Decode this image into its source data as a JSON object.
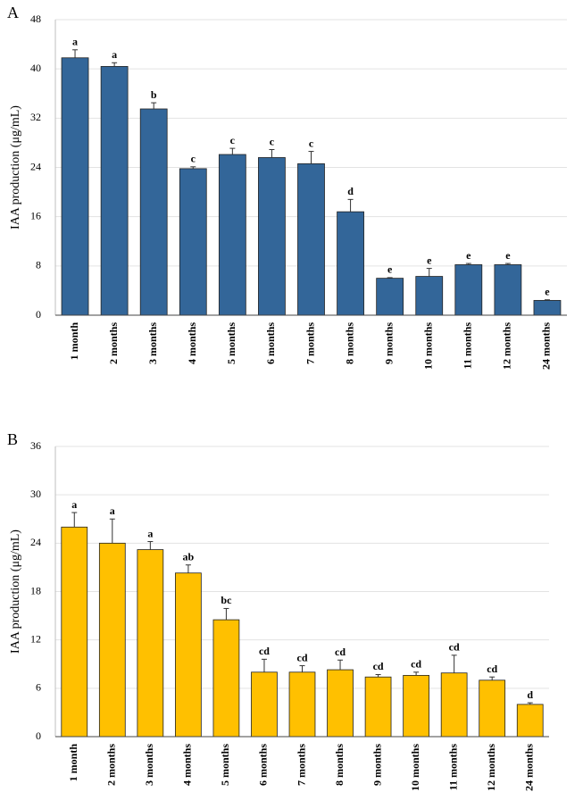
{
  "chart_data": [
    {
      "type": "bar",
      "panel": "A",
      "y_label": "IAA production (μg/mL)",
      "color": "#336699",
      "categories": [
        "1 month",
        "2 months",
        "3 months",
        "4 months",
        "5 months",
        "6 months",
        "7 months",
        "8 months",
        "9 months",
        "10 months",
        "11 months",
        "12 months",
        "24 months"
      ],
      "values": [
        41.8,
        40.4,
        33.5,
        23.8,
        26.1,
        25.6,
        24.6,
        16.8,
        6.0,
        6.3,
        8.2,
        8.2,
        2.4
      ],
      "errors": [
        1.3,
        0.6,
        1.0,
        0.3,
        1.0,
        1.3,
        2.0,
        2.0,
        0.1,
        1.3,
        0.2,
        0.2,
        0.1
      ],
      "letters": [
        "a",
        "a",
        "b",
        "c",
        "c",
        "c",
        "c",
        "d",
        "e",
        "e",
        "e",
        "e",
        "e"
      ],
      "ylim": [
        0,
        48
      ],
      "yticks": [
        0,
        8,
        16,
        24,
        32,
        40,
        48
      ],
      "grid": true
    },
    {
      "type": "bar",
      "panel": "B",
      "y_label": "IAA production (μg/mL)",
      "color": "#ffc000",
      "categories": [
        "1 month",
        "2 months",
        "3 months",
        "4 months",
        "5 months",
        "6 months",
        "7 months",
        "8 months",
        "9 months",
        "10 months",
        "11 months",
        "12 months",
        "24 months"
      ],
      "values": [
        26.0,
        24.0,
        23.2,
        20.3,
        14.5,
        8.0,
        8.0,
        8.3,
        7.4,
        7.6,
        7.9,
        7.0,
        4.0
      ],
      "errors": [
        1.8,
        3.0,
        1.0,
        1.0,
        1.4,
        1.6,
        0.8,
        1.2,
        0.3,
        0.4,
        2.2,
        0.4,
        0.2
      ],
      "letters": [
        "a",
        "a",
        "a",
        "ab",
        "bc",
        "cd",
        "cd",
        "cd",
        "cd",
        "cd",
        "cd",
        "cd",
        "d"
      ],
      "ylim": [
        0,
        36
      ],
      "yticks": [
        0,
        6,
        12,
        18,
        24,
        30,
        36
      ],
      "grid": true
    }
  ]
}
